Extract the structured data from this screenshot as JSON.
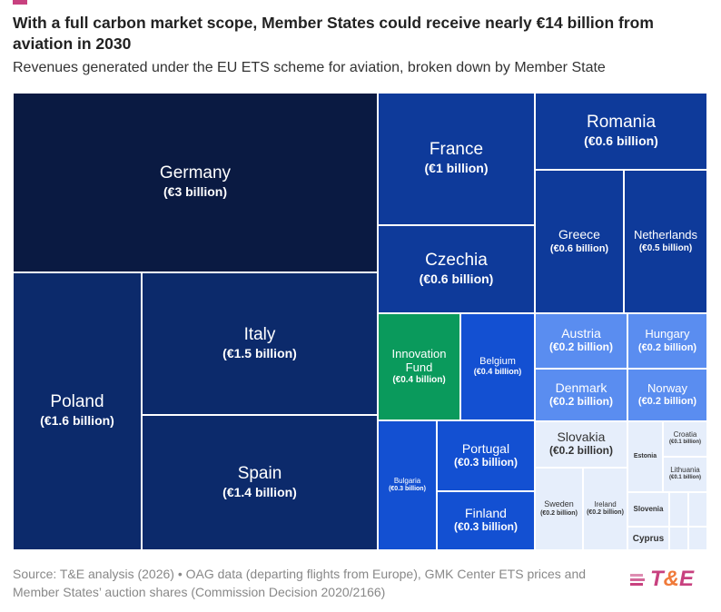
{
  "title": "With a full carbon market scope, Member States could receive nearly €14 billion from aviation in 2030",
  "subtitle": "Revenues generated under the EU ETS scheme for aviation, broken down by Member State",
  "source": "Source: T&E analysis (2026) • OAG data (departing flights from Europe), GMK Center ETS prices and Member States’ auction shares (Commission Decision 2020/2166)",
  "logo": "T&E",
  "chart_data": {
    "type": "treemap",
    "unit": "€ billion",
    "items": [
      {
        "name": "Germany",
        "label": "(€3 billion)",
        "value": 3,
        "color": "#0a1a42"
      },
      {
        "name": "Poland",
        "label": "(€1.6 billion)",
        "value": 1.6,
        "color": "#0c2a6b"
      },
      {
        "name": "Italy",
        "label": "(€1.5 billion)",
        "value": 1.5,
        "color": "#0c2a6b"
      },
      {
        "name": "Spain",
        "label": "(€1.4 billion)",
        "value": 1.4,
        "color": "#0c2a6b"
      },
      {
        "name": "France",
        "label": "(€1 billion)",
        "value": 1,
        "color": "#0e3a9a"
      },
      {
        "name": "Czechia",
        "label": "(€0.6 billion)",
        "value": 0.6,
        "color": "#0e3a9a"
      },
      {
        "name": "Romania",
        "label": "(€0.6 billion)",
        "value": 0.6,
        "color": "#0e3a9a"
      },
      {
        "name": "Greece",
        "label": "(€0.6 billion)",
        "value": 0.6,
        "color": "#0e3a9a"
      },
      {
        "name": "Netherlands",
        "label": "(€0.5 billion)",
        "value": 0.5,
        "color": "#0e3a9a"
      },
      {
        "name": "Innovation Fund",
        "label": "(€0.4 billion)",
        "value": 0.4,
        "color": "#0a9a5c"
      },
      {
        "name": "Belgium",
        "label": "(€0.4 billion)",
        "value": 0.4,
        "color": "#1350d2"
      },
      {
        "name": "Bulgaria",
        "label": "(€0.3 billion)",
        "value": 0.3,
        "color": "#1350d2"
      },
      {
        "name": "Portugal",
        "label": "(€0.3 billion)",
        "value": 0.3,
        "color": "#1350d2"
      },
      {
        "name": "Finland",
        "label": "(€0.3 billion)",
        "value": 0.3,
        "color": "#1350d2"
      },
      {
        "name": "Austria",
        "label": "(€0.2 billion)",
        "value": 0.2,
        "color": "#5a8df0"
      },
      {
        "name": "Hungary",
        "label": "(€0.2 billion)",
        "value": 0.2,
        "color": "#5a8df0"
      },
      {
        "name": "Denmark",
        "label": "(€0.2 billion)",
        "value": 0.2,
        "color": "#5a8df0"
      },
      {
        "name": "Norway",
        "label": "(€0.2 billion)",
        "value": 0.2,
        "color": "#5a8df0"
      },
      {
        "name": "Slovakia",
        "label": "(€0.2 billion)",
        "value": 0.2,
        "color": "#e6eefb"
      },
      {
        "name": "Sweden",
        "label": "(€0.2 billion)",
        "value": 0.2,
        "color": "#e6eefb"
      },
      {
        "name": "Ireland",
        "label": "(€0.2 billion)",
        "value": 0.2,
        "color": "#e6eefb"
      },
      {
        "name": "Estonia",
        "label": "",
        "value": 0.1,
        "color": "#e6eefb"
      },
      {
        "name": "Croatia",
        "label": "(€0.1 billion)",
        "value": 0.1,
        "color": "#e6eefb"
      },
      {
        "name": "Lithuania",
        "label": "(€0.1 billion)",
        "value": 0.1,
        "color": "#e6eefb"
      },
      {
        "name": "Slovenia",
        "label": "",
        "value": 0.1,
        "color": "#e6eefb"
      },
      {
        "name": "Cyprus",
        "label": "",
        "value": 0.1,
        "color": "#e6eefb"
      },
      {
        "name": "",
        "label": "",
        "value": 0.05,
        "color": "#e6eefb"
      },
      {
        "name": "",
        "label": "",
        "value": 0.05,
        "color": "#e6eefb"
      },
      {
        "name": "",
        "label": "",
        "value": 0.03,
        "color": "#e6eefb"
      },
      {
        "name": "",
        "label": "",
        "value": 0.03,
        "color": "#e6eefb"
      }
    ]
  }
}
